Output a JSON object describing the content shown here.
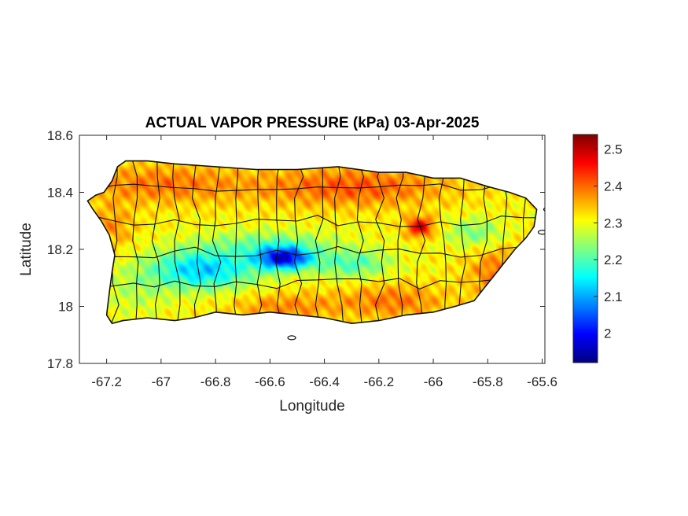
{
  "chart_data": {
    "type": "heatmap",
    "title": "ACTUAL VAPOR PRESSURE (kPa) 03-Apr-2025",
    "xlabel": "Longitude",
    "ylabel": "Latitude",
    "xlim": [
      -67.3,
      -65.59
    ],
    "ylim": [
      17.8,
      18.6
    ],
    "xticks": [
      -67.2,
      -67,
      -66.8,
      -66.6,
      -66.4,
      -66.2,
      -66,
      -65.8,
      -65.6
    ],
    "xtick_labels": [
      "-67.2",
      "-67",
      "-66.8",
      "-66.6",
      "-66.4",
      "-66.2",
      "-66",
      "-65.8",
      "-65.6"
    ],
    "yticks": [
      17.8,
      18,
      18.2,
      18.4,
      18.6
    ],
    "ytick_labels": [
      "17.8",
      "18",
      "18.2",
      "18.4",
      "18.6"
    ],
    "colorbar": {
      "colormap": "jet",
      "range": [
        1.92,
        2.54
      ],
      "ticks": [
        2,
        2.1,
        2.2,
        2.3,
        2.4,
        2.5
      ],
      "tick_labels": [
        "2",
        "2.1",
        "2.2",
        "2.3",
        "2.4",
        "2.5"
      ],
      "position": "right"
    },
    "grid": false,
    "region_outline": [
      [
        -67.27,
        18.37
      ],
      [
        -67.24,
        18.39
      ],
      [
        -67.21,
        18.4
      ],
      [
        -67.18,
        18.44
      ],
      [
        -67.16,
        18.49
      ],
      [
        -67.13,
        18.51
      ],
      [
        -67.05,
        18.51
      ],
      [
        -66.95,
        18.5
      ],
      [
        -66.8,
        18.49
      ],
      [
        -66.65,
        18.48
      ],
      [
        -66.5,
        18.48
      ],
      [
        -66.35,
        18.49
      ],
      [
        -66.2,
        18.47
      ],
      [
        -66.1,
        18.47
      ],
      [
        -66.0,
        18.45
      ],
      [
        -65.9,
        18.45
      ],
      [
        -65.8,
        18.42
      ],
      [
        -65.72,
        18.4
      ],
      [
        -65.66,
        18.38
      ],
      [
        -65.62,
        18.34
      ],
      [
        -65.63,
        18.28
      ],
      [
        -65.66,
        18.24
      ],
      [
        -65.7,
        18.2
      ],
      [
        -65.75,
        18.14
      ],
      [
        -65.8,
        18.08
      ],
      [
        -65.85,
        18.02
      ],
      [
        -65.92,
        18.0
      ],
      [
        -66.0,
        17.98
      ],
      [
        -66.1,
        17.97
      ],
      [
        -66.2,
        17.95
      ],
      [
        -66.3,
        17.94
      ],
      [
        -66.4,
        17.96
      ],
      [
        -66.5,
        17.97
      ],
      [
        -66.6,
        17.98
      ],
      [
        -66.7,
        17.97
      ],
      [
        -66.8,
        17.98
      ],
      [
        -66.88,
        17.96
      ],
      [
        -66.95,
        17.95
      ],
      [
        -67.05,
        17.96
      ],
      [
        -67.14,
        17.95
      ],
      [
        -67.18,
        17.94
      ],
      [
        -67.2,
        17.97
      ],
      [
        -67.19,
        18.05
      ],
      [
        -67.18,
        18.12
      ],
      [
        -67.17,
        18.18
      ],
      [
        -67.19,
        18.25
      ],
      [
        -67.22,
        18.3
      ],
      [
        -67.25,
        18.34
      ]
    ],
    "islands": [
      [
        -66.52,
        17.89
      ],
      [
        -65.58,
        18.34
      ],
      [
        -65.6,
        18.26
      ]
    ],
    "field_base": 2.31,
    "field_blobs": [
      {
        "lon": -66.55,
        "lat": 18.17,
        "amp": -0.3,
        "rx": 0.1,
        "ry": 0.04
      },
      {
        "lon": -66.85,
        "lat": 18.13,
        "amp": -0.19,
        "rx": 0.2,
        "ry": 0.07
      },
      {
        "lon": -66.3,
        "lat": 18.15,
        "amp": -0.11,
        "rx": 0.14,
        "ry": 0.05
      },
      {
        "lon": -65.85,
        "lat": 18.26,
        "amp": -0.08,
        "rx": 0.1,
        "ry": 0.05
      },
      {
        "lon": -66.6,
        "lat": 18.22,
        "amp": -0.08,
        "rx": 0.25,
        "ry": 0.05
      },
      {
        "lon": -66.05,
        "lat": 18.28,
        "amp": 0.17,
        "rx": 0.05,
        "ry": 0.035
      },
      {
        "lon": -66.3,
        "lat": 18.42,
        "amp": 0.1,
        "rx": 0.35,
        "ry": 0.07
      },
      {
        "lon": -67.0,
        "lat": 18.43,
        "amp": 0.08,
        "rx": 0.3,
        "ry": 0.07
      },
      {
        "lon": -67.18,
        "lat": 18.28,
        "amp": 0.06,
        "rx": 0.08,
        "ry": 0.08
      },
      {
        "lon": -66.55,
        "lat": 18.0,
        "amp": 0.07,
        "rx": 0.2,
        "ry": 0.05
      },
      {
        "lon": -66.15,
        "lat": 18.02,
        "amp": 0.08,
        "rx": 0.2,
        "ry": 0.06
      },
      {
        "lon": -65.75,
        "lat": 18.12,
        "amp": 0.09,
        "rx": 0.12,
        "ry": 0.08
      },
      {
        "lon": -67.1,
        "lat": 18.05,
        "amp": -0.04,
        "rx": 0.12,
        "ry": 0.08
      }
    ]
  }
}
